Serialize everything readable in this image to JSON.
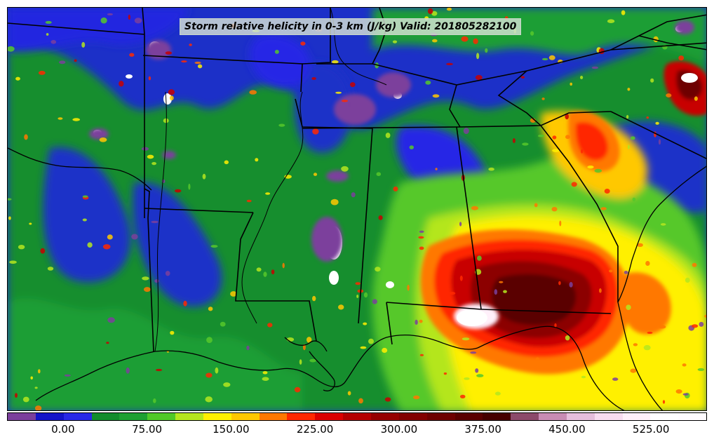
{
  "title": "Storm relative helicity in 0-3 km (J/kg) Valid: 201805282100",
  "colorbar": {
    "min": -50,
    "max": 575,
    "colors": [
      "#7b3f9c",
      "#1414c8",
      "#2828e6",
      "#128c2c",
      "#1ea032",
      "#50c828",
      "#b4e61e",
      "#fff000",
      "#ffc800",
      "#ff7800",
      "#ff2800",
      "#dc0000",
      "#b40000",
      "#960000",
      "#820000",
      "#6e0000",
      "#5a0000",
      "#460000",
      "#8c4a6a",
      "#c88cb4",
      "#e6bedc",
      "#f8dcf0",
      "#fff0fa",
      "#ffffff",
      "#fffcff"
    ],
    "ticks": [
      "0.00",
      "75.00",
      "150.00",
      "225.00",
      "300.00",
      "375.00",
      "450.00",
      "525.00"
    ]
  },
  "map": {
    "background_color": "#1a2fc4",
    "region": "Southeastern United States"
  }
}
